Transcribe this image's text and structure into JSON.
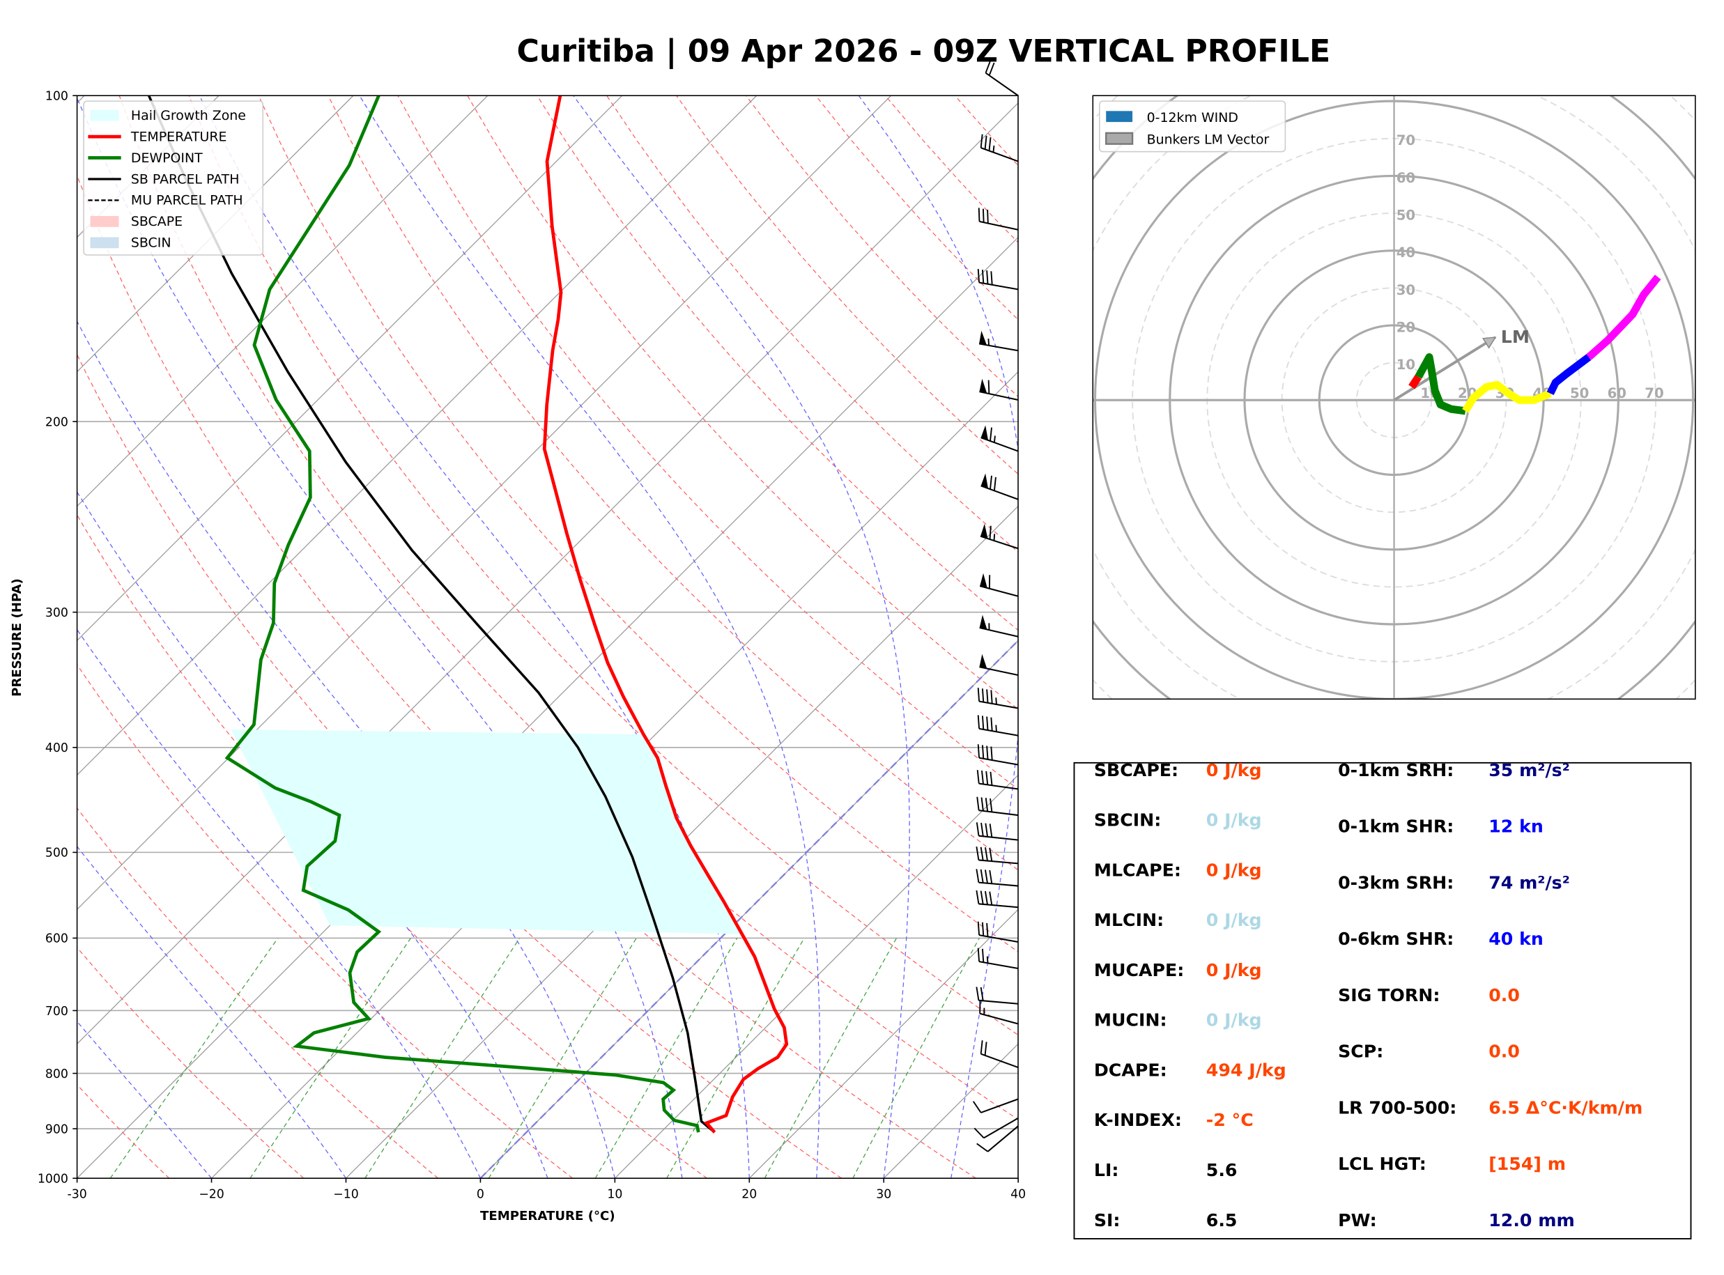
{
  "title": "Curitiba | 09 Apr 2026 - 09Z VERTICAL PROFILE",
  "colors": {
    "temperature": "#ff0000",
    "dewpoint": "#008000",
    "parcel": "#000000",
    "hail": "#e0ffff",
    "orange": "#ff4500",
    "lightblue": "#add8e6",
    "navy": "#000080",
    "blue": "#0000ff"
  },
  "chart_data": [
    {
      "type": "line",
      "name": "skew-t",
      "xlabel": "TEMPERATURE (°C)",
      "ylabel": "PRESSURE (HPA)",
      "xlim": [
        -30,
        40
      ],
      "ylim": [
        1000,
        100
      ],
      "xticks": [
        "-30",
        "−20",
        "−10",
        "0",
        "10",
        "20",
        "30",
        "40"
      ],
      "xtick_values": [
        -30,
        -20,
        -10,
        0,
        10,
        20,
        30,
        40
      ],
      "yticks": [
        "100",
        "200",
        "300",
        "400",
        "500",
        "600",
        "700",
        "800",
        "900",
        "1000"
      ],
      "ytick_values": [
        100,
        200,
        300,
        400,
        500,
        600,
        700,
        800,
        900,
        1000
      ],
      "legend_position": "top-left",
      "legend": [
        "Hail Growth Zone",
        "TEMPERATURE",
        "DEWPOINT",
        "SB PARCEL PATH",
        "MU PARCEL PATH",
        "SBCAPE",
        "SBCIN"
      ],
      "hail_growth_zone": {
        "p_top": 385,
        "p_bottom": 595
      },
      "temperature": {
        "p": [
          907,
          889,
          875,
          841,
          810,
          792,
          773,
          752,
          726,
          698,
          624,
          595,
          555,
          526,
          493,
          465,
          434,
          409,
          389,
          359,
          334,
          308,
          280,
          254,
          232,
          212,
          193,
          172,
          161,
          152,
          132,
          115,
          100
        ],
        "t": [
          14.0,
          12.7,
          13.6,
          12.7,
          12.2,
          12.5,
          13.1,
          12.8,
          11.4,
          9.3,
          3.9,
          1.3,
          -2.5,
          -5.5,
          -9.1,
          -12.2,
          -15.4,
          -18.1,
          -20.9,
          -25.2,
          -28.9,
          -32.7,
          -37.1,
          -41.5,
          -45.5,
          -49.5,
          -52.6,
          -56.2,
          -58.1,
          -59.9,
          -65.5,
          -70.7,
          -74.6
        ]
      },
      "dewpoint": {
        "p": [
          907,
          894,
          884,
          865,
          845,
          829,
          816,
          803,
          792,
          773,
          755,
          734,
          712,
          688,
          646,
          618,
          592,
          565,
          542,
          515,
          488,
          462,
          449,
          436,
          409,
          381,
          332,
          307,
          282,
          260,
          235,
          213,
          191,
          170,
          151,
          116,
          100
        ],
        "t": [
          12.8,
          12.2,
          10.1,
          8.6,
          7.7,
          7.8,
          6.5,
          2.4,
          -4.2,
          -16.1,
          -23.5,
          -23.2,
          -20.2,
          -22.5,
          -25.0,
          -26.0,
          -25.9,
          -29.8,
          -34.6,
          -36.1,
          -35.9,
          -37.5,
          -40.6,
          -44.3,
          -50.1,
          -50.6,
          -54.9,
          -56.7,
          -59.6,
          -61.4,
          -63.3,
          -66.8,
          -73.1,
          -78.8,
          -81.8,
          -85.1,
          -88.1
        ]
      },
      "sb_parcel": {
        "p": [
          907,
          886,
          816,
          734,
          653,
          575,
          505,
          444,
          400,
          356,
          309,
          263,
          218,
          180,
          146,
          120,
          100
        ],
        "t": [
          14.0,
          12.2,
          8.9,
          4.6,
          -0.6,
          -6.5,
          -12.6,
          -19.1,
          -24.8,
          -31.8,
          -41.2,
          -51.8,
          -63.3,
          -74.3,
          -85.8,
          -96.0,
          -105.2
        ]
      },
      "wind_barbs": [
        {
          "p": 100,
          "dir": 305,
          "spd": 20
        },
        {
          "p": 115,
          "dir": 290,
          "spd": 35
        },
        {
          "p": 133,
          "dir": 282,
          "spd": 30
        },
        {
          "p": 151,
          "dir": 280,
          "spd": 40
        },
        {
          "p": 172,
          "dir": 280,
          "spd": 55
        },
        {
          "p": 191,
          "dir": 282,
          "spd": 60
        },
        {
          "p": 213,
          "dir": 290,
          "spd": 65
        },
        {
          "p": 236,
          "dir": 290,
          "spd": 70
        },
        {
          "p": 262,
          "dir": 288,
          "spd": 65
        },
        {
          "p": 290,
          "dir": 285,
          "spd": 60
        },
        {
          "p": 316,
          "dir": 283,
          "spd": 55
        },
        {
          "p": 343,
          "dir": 282,
          "spd": 50
        },
        {
          "p": 368,
          "dir": 280,
          "spd": 45
        },
        {
          "p": 390,
          "dir": 280,
          "spd": 45
        },
        {
          "p": 415,
          "dir": 280,
          "spd": 40
        },
        {
          "p": 437,
          "dir": 278,
          "spd": 40
        },
        {
          "p": 462,
          "dir": 277,
          "spd": 40
        },
        {
          "p": 487,
          "dir": 276,
          "spd": 40
        },
        {
          "p": 512,
          "dir": 275,
          "spd": 40
        },
        {
          "p": 537,
          "dir": 275,
          "spd": 40
        },
        {
          "p": 562,
          "dir": 275,
          "spd": 40
        },
        {
          "p": 605,
          "dir": 280,
          "spd": 30
        },
        {
          "p": 640,
          "dir": 280,
          "spd": 25
        },
        {
          "p": 690,
          "dir": 275,
          "spd": 20
        },
        {
          "p": 720,
          "dir": 285,
          "spd": 15
        },
        {
          "p": 790,
          "dir": 290,
          "spd": 20
        },
        {
          "p": 845,
          "dir": 250,
          "spd": 10
        },
        {
          "p": 880,
          "dir": 240,
          "spd": 10
        },
        {
          "p": 895,
          "dir": 230,
          "spd": 10
        }
      ]
    },
    {
      "type": "line",
      "name": "hodograph",
      "legend": [
        "0-12km WIND",
        "Bunkers LM Vector"
      ],
      "ring_labels": [
        "10",
        "20",
        "30",
        "40",
        "50",
        "60",
        "70"
      ],
      "ring_values": [
        10,
        20,
        30,
        40,
        50,
        60,
        70
      ],
      "lm_label": "LM",
      "lm_vector": {
        "u": 27.1,
        "v": 16.8
      },
      "segments": [
        {
          "color": "#ff0000",
          "u": [
            4.7,
            6.5
          ],
          "v": [
            3.5,
            6.2
          ]
        },
        {
          "color": "#008000",
          "u": [
            6.5,
            9.4,
            10.0,
            10.9,
            12.4,
            15.3,
            19.1
          ],
          "v": [
            6.2,
            11.5,
            8.2,
            2.6,
            -1.2,
            -2.4,
            -2.9
          ]
        },
        {
          "color": "#ffff00",
          "u": [
            19.1,
            21.2,
            24.7,
            27.6,
            30.6,
            33.5,
            37.4,
            41.8
          ],
          "v": [
            -2.9,
            0.6,
            3.5,
            4.1,
            1.8,
            0,
            0,
            1.8
          ]
        },
        {
          "color": "#0000ff",
          "u": [
            41.8,
            43.2,
            46.2,
            52.1
          ],
          "v": [
            1.8,
            4.7,
            7.1,
            11.5
          ]
        },
        {
          "color": "#ff00ff",
          "u": [
            52.1,
            57.1,
            63.8,
            66.8,
            70.6
          ],
          "v": [
            11.5,
            15.9,
            22.9,
            28.2,
            32.9
          ]
        }
      ]
    }
  ],
  "stats": {
    "left": [
      {
        "label": "SBCAPE:",
        "value": "0 J/kg",
        "color": "#ff4500"
      },
      {
        "label": "SBCIN:",
        "value": "0 J/kg",
        "color": "#add8e6"
      },
      {
        "label": "MLCAPE:",
        "value": "0 J/kg",
        "color": "#ff4500"
      },
      {
        "label": "MLCIN:",
        "value": "0 J/kg",
        "color": "#add8e6"
      },
      {
        "label": "MUCAPE:",
        "value": "0 J/kg",
        "color": "#ff4500"
      },
      {
        "label": "MUCIN:",
        "value": "0 J/kg",
        "color": "#add8e6"
      },
      {
        "label": "DCAPE:",
        "value": "494 J/kg",
        "color": "#ff4500"
      },
      {
        "label": "K-INDEX:",
        "value": "-2 °C",
        "color": "#ff4500"
      },
      {
        "label": "LI:",
        "value": "5.6",
        "color": "#000000"
      },
      {
        "label": "SI:",
        "value": "6.5",
        "color": "#000000"
      }
    ],
    "right": [
      {
        "label": "0-1km SRH:",
        "value": "35 m²/s²",
        "color": "#000080"
      },
      {
        "label": "0-1km SHR:",
        "value": "12 kn",
        "color": "#0000ff"
      },
      {
        "label": "0-3km SRH:",
        "value": "74 m²/s²",
        "color": "#000080"
      },
      {
        "label": "0-6km SHR:",
        "value": "40 kn",
        "color": "#0000ff"
      },
      {
        "label": "SIG TORN:",
        "value": "0.0",
        "color": "#ff4500"
      },
      {
        "label": "SCP:",
        "value": "0.0",
        "color": "#ff4500"
      },
      {
        "label": "LR 700-500:",
        "value": "6.5 Δ°C·K/km/m",
        "color": "#ff4500"
      },
      {
        "label": "LCL HGT:",
        "value": "[154] m",
        "color": "#ff4500"
      },
      {
        "label": "PW:",
        "value": "12.0 mm",
        "color": "#000080"
      }
    ]
  }
}
